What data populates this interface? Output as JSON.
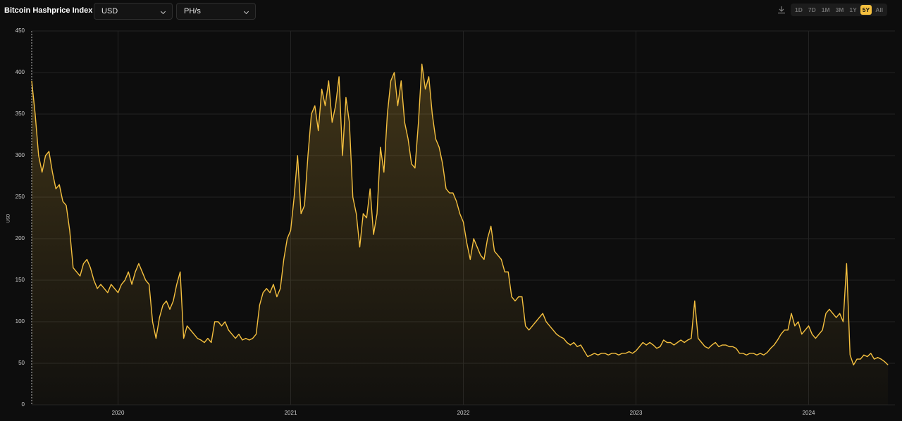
{
  "header": {
    "title": "Bitcoin Hashprice Index",
    "currency": "USD",
    "unit": "PH/s"
  },
  "ranges": [
    "1D",
    "7D",
    "1M",
    "3M",
    "1Y",
    "5Y",
    "All"
  ],
  "selected_range": "5Y",
  "chart_data": {
    "type": "area",
    "y_label": "USD",
    "color": "#f5c03f",
    "grid": true,
    "xlim": [
      2019.5,
      2024.5
    ],
    "xticks": [
      2020,
      2021,
      2022,
      2023,
      2024
    ],
    "ylim": [
      0,
      450
    ],
    "yticks": [
      0,
      50,
      100,
      150,
      200,
      250,
      300,
      350,
      400,
      450
    ],
    "x": [
      2019.5,
      2019.52,
      2019.54,
      2019.56,
      2019.58,
      2019.6,
      2019.62,
      2019.64,
      2019.66,
      2019.68,
      2019.7,
      2019.72,
      2019.74,
      2019.76,
      2019.78,
      2019.8,
      2019.82,
      2019.84,
      2019.86,
      2019.88,
      2019.9,
      2019.92,
      2019.94,
      2019.96,
      2019.98,
      2020.0,
      2020.02,
      2020.04,
      2020.06,
      2020.08,
      2020.1,
      2020.12,
      2020.14,
      2020.16,
      2020.18,
      2020.2,
      2020.22,
      2020.24,
      2020.26,
      2020.28,
      2020.3,
      2020.32,
      2020.34,
      2020.36,
      2020.38,
      2020.4,
      2020.42,
      2020.44,
      2020.46,
      2020.48,
      2020.5,
      2020.52,
      2020.54,
      2020.56,
      2020.58,
      2020.6,
      2020.62,
      2020.64,
      2020.66,
      2020.68,
      2020.7,
      2020.72,
      2020.74,
      2020.76,
      2020.78,
      2020.8,
      2020.82,
      2020.84,
      2020.86,
      2020.88,
      2020.9,
      2020.92,
      2020.94,
      2020.96,
      2020.98,
      2021.0,
      2021.02,
      2021.04,
      2021.06,
      2021.08,
      2021.1,
      2021.12,
      2021.14,
      2021.16,
      2021.18,
      2021.2,
      2021.22,
      2021.24,
      2021.26,
      2021.28,
      2021.3,
      2021.32,
      2021.34,
      2021.36,
      2021.38,
      2021.4,
      2021.42,
      2021.44,
      2021.46,
      2021.48,
      2021.5,
      2021.52,
      2021.54,
      2021.56,
      2021.58,
      2021.6,
      2021.62,
      2021.64,
      2021.66,
      2021.68,
      2021.7,
      2021.72,
      2021.74,
      2021.76,
      2021.78,
      2021.8,
      2021.82,
      2021.84,
      2021.86,
      2021.88,
      2021.9,
      2021.92,
      2021.94,
      2021.96,
      2021.98,
      2022.0,
      2022.02,
      2022.04,
      2022.06,
      2022.08,
      2022.1,
      2022.12,
      2022.14,
      2022.16,
      2022.18,
      2022.2,
      2022.22,
      2022.24,
      2022.26,
      2022.28,
      2022.3,
      2022.32,
      2022.34,
      2022.36,
      2022.38,
      2022.4,
      2022.42,
      2022.44,
      2022.46,
      2022.48,
      2022.5,
      2022.52,
      2022.54,
      2022.56,
      2022.58,
      2022.6,
      2022.62,
      2022.64,
      2022.66,
      2022.68,
      2022.7,
      2022.72,
      2022.74,
      2022.76,
      2022.78,
      2022.8,
      2022.82,
      2022.84,
      2022.86,
      2022.88,
      2022.9,
      2022.92,
      2022.94,
      2022.96,
      2022.98,
      2023.0,
      2023.02,
      2023.04,
      2023.06,
      2023.08,
      2023.1,
      2023.12,
      2023.14,
      2023.16,
      2023.18,
      2023.2,
      2023.22,
      2023.24,
      2023.26,
      2023.28,
      2023.3,
      2023.32,
      2023.34,
      2023.36,
      2023.38,
      2023.4,
      2023.42,
      2023.44,
      2023.46,
      2023.48,
      2023.5,
      2023.52,
      2023.54,
      2023.56,
      2023.58,
      2023.6,
      2023.62,
      2023.64,
      2023.66,
      2023.68,
      2023.7,
      2023.72,
      2023.74,
      2023.76,
      2023.78,
      2023.8,
      2023.82,
      2023.84,
      2023.86,
      2023.88,
      2023.9,
      2023.92,
      2023.94,
      2023.96,
      2023.98,
      2024.0,
      2024.02,
      2024.04,
      2024.06,
      2024.08,
      2024.1,
      2024.12,
      2024.14,
      2024.16,
      2024.18,
      2024.2,
      2024.22,
      2024.24,
      2024.26,
      2024.28,
      2024.3,
      2024.32,
      2024.34,
      2024.36,
      2024.38,
      2024.4,
      2024.42,
      2024.44,
      2024.46
    ],
    "values": [
      390,
      350,
      300,
      280,
      300,
      305,
      280,
      260,
      265,
      245,
      240,
      210,
      165,
      160,
      155,
      170,
      175,
      165,
      150,
      140,
      145,
      140,
      135,
      145,
      140,
      135,
      145,
      150,
      160,
      145,
      160,
      170,
      160,
      150,
      145,
      100,
      80,
      105,
      120,
      125,
      115,
      125,
      145,
      160,
      80,
      95,
      90,
      85,
      80,
      78,
      75,
      80,
      75,
      100,
      100,
      95,
      100,
      90,
      85,
      80,
      85,
      78,
      80,
      78,
      80,
      85,
      120,
      135,
      140,
      135,
      145,
      130,
      140,
      175,
      200,
      210,
      250,
      300,
      230,
      240,
      300,
      350,
      360,
      330,
      380,
      360,
      390,
      340,
      360,
      395,
      300,
      370,
      340,
      250,
      230,
      190,
      230,
      225,
      260,
      205,
      230,
      310,
      280,
      350,
      390,
      400,
      360,
      390,
      340,
      320,
      290,
      285,
      340,
      410,
      380,
      395,
      350,
      320,
      310,
      290,
      260,
      255,
      255,
      245,
      230,
      220,
      195,
      175,
      200,
      190,
      180,
      175,
      200,
      215,
      185,
      180,
      175,
      160,
      160,
      130,
      125,
      130,
      130,
      95,
      90,
      95,
      100,
      105,
      110,
      100,
      95,
      90,
      85,
      82,
      80,
      75,
      72,
      75,
      70,
      72,
      65,
      58,
      60,
      62,
      60,
      62,
      62,
      60,
      62,
      62,
      60,
      62,
      62,
      64,
      62,
      65,
      70,
      75,
      72,
      75,
      72,
      68,
      70,
      78,
      75,
      75,
      72,
      75,
      78,
      75,
      78,
      80,
      125,
      80,
      75,
      70,
      68,
      72,
      75,
      70,
      72,
      72,
      70,
      70,
      68,
      62,
      62,
      60,
      62,
      62,
      60,
      62,
      60,
      63,
      68,
      72,
      78,
      85,
      90,
      90,
      110,
      95,
      100,
      85,
      90,
      95,
      85,
      80,
      85,
      90,
      110,
      115,
      110,
      105,
      110,
      100,
      170,
      60,
      48,
      55,
      55,
      60,
      58,
      62,
      55,
      57,
      55,
      52,
      48
    ]
  }
}
